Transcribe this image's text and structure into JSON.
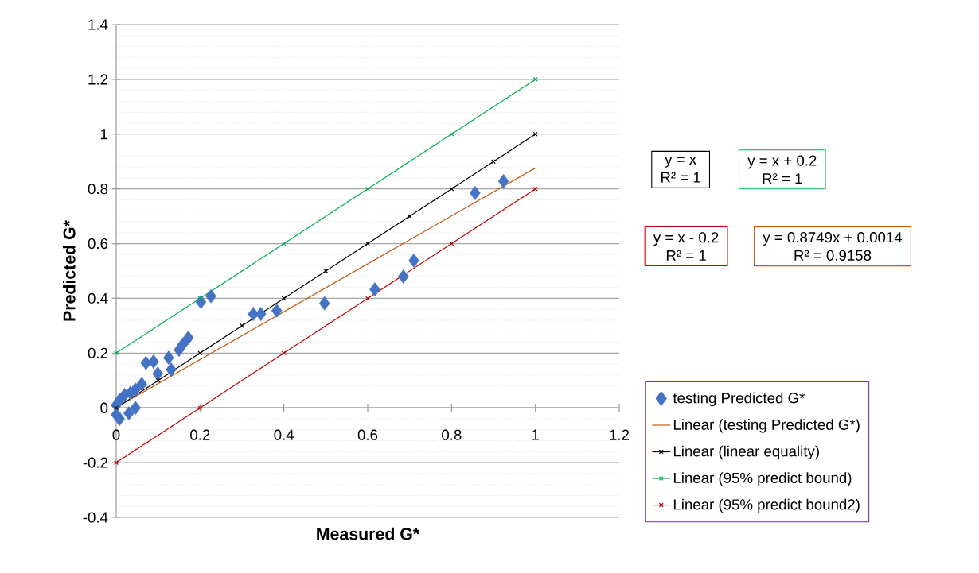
{
  "chart_data": {
    "type": "scatter",
    "xlabel": "Measured G*",
    "ylabel": "Predicted G*",
    "xlim": [
      0,
      1.2
    ],
    "ylim": [
      -0.4,
      1.4
    ],
    "xticks": [
      0,
      0.2,
      0.4,
      0.6,
      0.8,
      1,
      1.2
    ],
    "yticks": [
      -0.4,
      -0.2,
      0,
      0.2,
      0.4,
      0.6,
      0.8,
      1,
      1.2,
      1.4
    ],
    "grid": "y",
    "legend": "right",
    "series": [
      {
        "name": "testing Predicted G*",
        "marker": "diamond",
        "color": "#4472c4",
        "x": [
          0.202,
          0.226,
          0.327,
          0.345,
          0.383,
          0.497,
          0.172,
          0.159,
          0.15,
          0.125,
          0.071,
          0.089,
          0.099,
          0.131,
          0.061,
          0.046,
          0.034,
          0.02,
          0.008,
          0.0,
          0.0,
          0.013,
          0.046,
          0.03,
          0.008,
          0.924,
          0.856,
          0.71,
          0.685,
          0.617
        ],
        "values": [
          0.387,
          0.408,
          0.343,
          0.343,
          0.355,
          0.382,
          0.256,
          0.232,
          0.212,
          0.183,
          0.164,
          0.169,
          0.125,
          0.14,
          0.087,
          0.067,
          0.055,
          0.047,
          0.028,
          0.01,
          -0.025,
          null,
          0.0,
          -0.02,
          -0.04,
          0.828,
          0.785,
          0.538,
          0.48,
          0.433
        ]
      },
      {
        "name": "Linear (testing Predicted G*)",
        "type": "line",
        "marker": "none",
        "color": "#c55a11",
        "x": [
          0,
          1
        ],
        "values": [
          0.0014,
          0.8763
        ]
      },
      {
        "name": "Linear (linear equality)",
        "type": "line",
        "marker": "cross",
        "color": "#000000",
        "x": [
          0,
          0.1,
          0.2,
          0.3,
          0.4,
          0.5,
          0.6,
          0.7,
          0.8,
          0.9,
          1
        ],
        "values": [
          0,
          0.1,
          0.2,
          0.3,
          0.4,
          0.5,
          0.6,
          0.7,
          0.8,
          0.9,
          1
        ]
      },
      {
        "name": "Linear (95% predict bound)",
        "type": "line",
        "marker": "cross",
        "color": "#00b050",
        "x": [
          0,
          0.2,
          0.4,
          0.6,
          0.8,
          1
        ],
        "values": [
          0.2,
          0.4,
          0.6,
          0.8,
          1.0,
          1.2
        ]
      },
      {
        "name": "Linear (95% predict bound2)",
        "type": "line",
        "marker": "cross",
        "color": "#c00000",
        "x": [
          0,
          0.2,
          0.4,
          0.6,
          0.8,
          1
        ],
        "values": [
          -0.2,
          0,
          0.2,
          0.4,
          0.6,
          0.8
        ]
      }
    ],
    "annotations": [
      "y = x",
      "R² = 1",
      "y = x + 0.2",
      "R² = 1",
      "y = x - 0.2",
      "R² = 1",
      "y = 0.8749x + 0.0014",
      "R² = 0.9158"
    ]
  }
}
